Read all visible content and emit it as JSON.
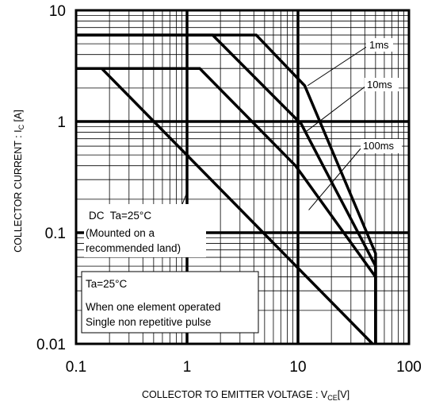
{
  "chart_data": {
    "type": "line",
    "scale": {
      "x": "log",
      "y": "log"
    },
    "xlim": [
      0.1,
      100
    ],
    "ylim": [
      0.01,
      10
    ],
    "x_ticks": [
      "0.1",
      "1",
      "10",
      "100"
    ],
    "y_ticks": [
      "10",
      "1",
      "0.1",
      "0.01"
    ],
    "grid": true,
    "xlabel": {
      "main": "COLLECTOR TO EMITTER VOLTAGE : V",
      "sub": "CE",
      "tail": "[V]"
    },
    "ylabel": {
      "main": "COLLECTOR CURRENT : I",
      "sub": "C",
      "tail": " [A]"
    },
    "series": [
      {
        "name": "1ms",
        "x": [
          0.1,
          4.2,
          11.5,
          50,
          50
        ],
        "y": [
          6,
          6,
          2.1,
          0.065,
          0.01
        ]
      },
      {
        "name": "10ms",
        "x": [
          0.1,
          1.7,
          10.7,
          50,
          50
        ],
        "y": [
          6,
          6,
          0.95,
          0.05,
          0.01
        ]
      },
      {
        "name": "100ms",
        "x": [
          0.1,
          1.3,
          9.5,
          50,
          50
        ],
        "y": [
          3,
          3,
          0.4,
          0.04,
          0.01
        ]
      },
      {
        "name": "DC",
        "x": [
          0.1,
          0.17,
          47,
          47
        ],
        "y": [
          3,
          3,
          0.01,
          0.01
        ]
      }
    ],
    "annotations": [
      {
        "text": "1ms",
        "x": 38,
        "y": 6,
        "arrow_to": [
          12.2,
          2.1
        ]
      },
      {
        "text": "10ms",
        "x": 40,
        "y": 2.6,
        "arrow_to": [
          11.6,
          0.8
        ]
      },
      {
        "text": "100ms",
        "x": 42,
        "y": 0.95,
        "arrow_to": [
          12.5,
          0.16
        ]
      }
    ],
    "dc_note": {
      "lines": [
        "DC  Ta=25°C",
        "(Mounted on a",
        "recommended land)"
      ],
      "arrow_to": [
        1.0,
        0.23
      ]
    },
    "conditions_box": {
      "lines": [
        "Ta=25°C",
        "When one element operated",
        "Single non repetitive pulse"
      ]
    }
  }
}
